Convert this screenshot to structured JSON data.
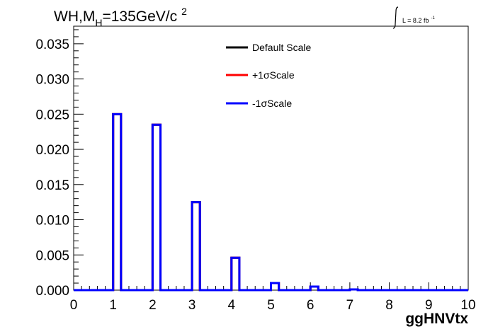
{
  "chart_data": {
    "type": "histogram",
    "title_prefix": "WH,M",
    "title_sub": "H",
    "title_suffix": "=135GeV/c",
    "title_sup": "2",
    "lumi_text": "L = 8.2 fb",
    "lumi_sup": "-1",
    "xlabel": "ggHNVtx",
    "ylabel": "",
    "xlim": [
      0,
      10
    ],
    "ylim": [
      0,
      0.0375
    ],
    "x_ticks": [
      "0",
      "1",
      "2",
      "3",
      "4",
      "5",
      "6",
      "7",
      "8",
      "9",
      "10"
    ],
    "y_ticks": [
      "0.000",
      "0.005",
      "0.010",
      "0.015",
      "0.020",
      "0.025",
      "0.030",
      "0.035"
    ],
    "bin_edges": [
      0.0,
      0.2,
      0.4,
      0.6,
      0.8,
      1.0,
      1.2,
      1.4,
      1.6,
      1.8,
      2.0,
      2.2,
      2.4,
      2.6,
      2.8,
      3.0,
      3.2,
      3.4,
      3.6,
      3.8,
      4.0,
      4.2,
      4.4,
      4.6,
      4.8,
      5.0,
      5.2,
      5.4,
      5.6,
      5.8,
      6.0,
      6.2,
      6.4,
      6.6,
      6.8,
      7.0,
      7.2,
      7.4,
      7.6,
      7.8,
      8.0,
      8.2,
      8.4,
      8.6,
      8.8,
      9.0,
      9.2,
      9.4,
      9.6,
      9.8,
      10.0
    ],
    "legend_position": "top-center",
    "series": [
      {
        "name": "Default Scale",
        "color": "#000000",
        "values": [
          0,
          0,
          0,
          0,
          0,
          0.025,
          0,
          0,
          0,
          0,
          0.0235,
          0,
          0,
          0,
          0,
          0.0125,
          0,
          0,
          0,
          0,
          0.0046,
          0,
          0,
          0,
          0,
          0.001,
          0,
          0,
          0,
          0,
          0.0005,
          0,
          0,
          0,
          0,
          0.0001,
          0,
          0,
          0,
          0,
          0,
          0,
          0,
          0,
          0,
          0,
          0,
          0,
          0,
          0
        ]
      },
      {
        "name": "+1σScale",
        "color": "#ff0000",
        "values": [
          0,
          0,
          0,
          0,
          0,
          0.025,
          0,
          0,
          0,
          0,
          0.0235,
          0,
          0,
          0,
          0,
          0.0125,
          0,
          0,
          0,
          0,
          0.0046,
          0,
          0,
          0,
          0,
          0.001,
          0,
          0,
          0,
          0,
          0.0005,
          0,
          0,
          0,
          0,
          0.0001,
          0,
          0,
          0,
          0,
          0,
          0,
          0,
          0,
          0,
          0,
          0,
          0,
          0,
          0
        ]
      },
      {
        "name": "-1σScale",
        "color": "#0000ff",
        "values": [
          0,
          0,
          0,
          0,
          0,
          0.025,
          0,
          0,
          0,
          0,
          0.0235,
          0,
          0,
          0,
          0,
          0.0125,
          0,
          0,
          0,
          0,
          0.0046,
          0,
          0,
          0,
          0,
          0.001,
          0,
          0,
          0,
          0,
          0.0005,
          0,
          0,
          0,
          0,
          0.0001,
          0,
          0,
          0,
          0,
          0,
          0,
          0,
          0,
          0,
          0,
          0,
          0,
          0,
          0
        ]
      }
    ]
  }
}
